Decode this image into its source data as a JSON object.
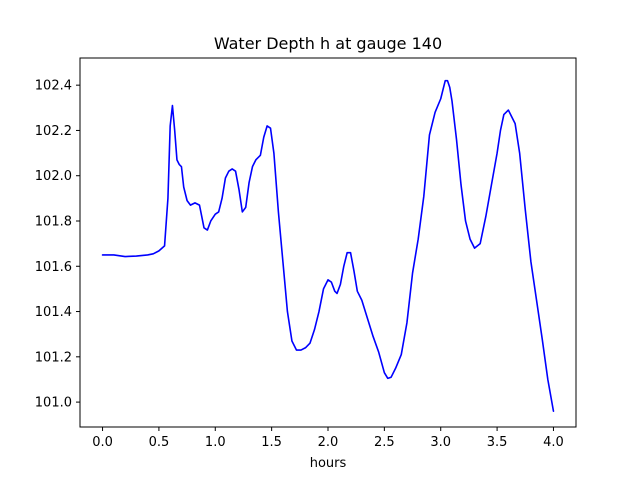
{
  "chart_data": {
    "type": "line",
    "title": "Water Depth h at gauge 140",
    "xlabel": "hours",
    "ylabel": "",
    "xlim": [
      -0.2,
      4.2
    ],
    "ylim": [
      100.89,
      102.52
    ],
    "xticks": [
      0.0,
      0.5,
      1.0,
      1.5,
      2.0,
      2.5,
      3.0,
      3.5,
      4.0
    ],
    "xtick_labels": [
      "0.0",
      "0.5",
      "1.0",
      "1.5",
      "2.0",
      "2.5",
      "3.0",
      "3.5",
      "4.0"
    ],
    "yticks": [
      101.0,
      101.2,
      101.4,
      101.6,
      101.8,
      102.0,
      102.2,
      102.4
    ],
    "ytick_labels": [
      "101.0",
      "101.2",
      "101.4",
      "101.6",
      "101.8",
      "102.0",
      "102.2",
      "102.4"
    ],
    "grid": false,
    "line_color": "#0000ff",
    "series": [
      {
        "x": [
          0.0,
          0.1,
          0.2,
          0.3,
          0.4,
          0.45,
          0.5,
          0.55,
          0.58,
          0.6,
          0.62,
          0.64,
          0.66,
          0.68,
          0.7,
          0.72,
          0.75,
          0.78,
          0.82,
          0.86,
          0.9,
          0.93,
          0.96,
          1.0,
          1.03,
          1.06,
          1.09,
          1.12,
          1.15,
          1.18,
          1.21,
          1.24,
          1.27,
          1.3,
          1.33,
          1.36,
          1.4,
          1.43,
          1.46,
          1.49,
          1.52,
          1.56,
          1.6,
          1.64,
          1.68,
          1.72,
          1.76,
          1.8,
          1.84,
          1.88,
          1.92,
          1.96,
          2.0,
          2.03,
          2.06,
          2.08,
          2.11,
          2.14,
          2.17,
          2.2,
          2.23,
          2.26,
          2.3,
          2.35,
          2.4,
          2.45,
          2.5,
          2.53,
          2.56,
          2.6,
          2.65,
          2.7,
          2.75,
          2.8,
          2.85,
          2.9,
          2.95,
          3.0,
          3.02,
          3.04,
          3.06,
          3.08,
          3.1,
          3.14,
          3.18,
          3.22,
          3.26,
          3.3,
          3.35,
          3.4,
          3.45,
          3.5,
          3.53,
          3.56,
          3.6,
          3.63,
          3.66,
          3.7,
          3.75,
          3.8,
          3.85,
          3.9,
          3.95,
          4.0
        ],
        "y": [
          101.65,
          101.65,
          101.643,
          101.645,
          101.65,
          101.655,
          101.668,
          101.69,
          101.9,
          102.22,
          102.31,
          102.2,
          102.07,
          102.05,
          102.04,
          101.95,
          101.89,
          101.87,
          101.88,
          101.87,
          101.77,
          101.76,
          101.8,
          101.83,
          101.84,
          101.9,
          101.99,
          102.02,
          102.03,
          102.02,
          101.94,
          101.84,
          101.86,
          101.97,
          102.04,
          102.07,
          102.09,
          102.17,
          102.22,
          102.21,
          102.1,
          101.84,
          101.62,
          101.4,
          101.27,
          101.23,
          101.23,
          101.24,
          101.26,
          101.32,
          101.4,
          101.5,
          101.54,
          101.53,
          101.49,
          101.48,
          101.52,
          101.6,
          101.66,
          101.66,
          101.58,
          101.49,
          101.45,
          101.37,
          101.29,
          101.22,
          101.13,
          101.105,
          101.11,
          101.15,
          101.21,
          101.35,
          101.57,
          101.72,
          101.91,
          102.18,
          102.28,
          102.34,
          102.38,
          102.42,
          102.42,
          102.39,
          102.33,
          102.16,
          101.96,
          101.8,
          101.72,
          101.68,
          101.7,
          101.82,
          101.96,
          102.1,
          102.2,
          102.27,
          102.29,
          102.26,
          102.23,
          102.1,
          101.85,
          101.62,
          101.45,
          101.28,
          101.1,
          100.96
        ]
      }
    ]
  }
}
